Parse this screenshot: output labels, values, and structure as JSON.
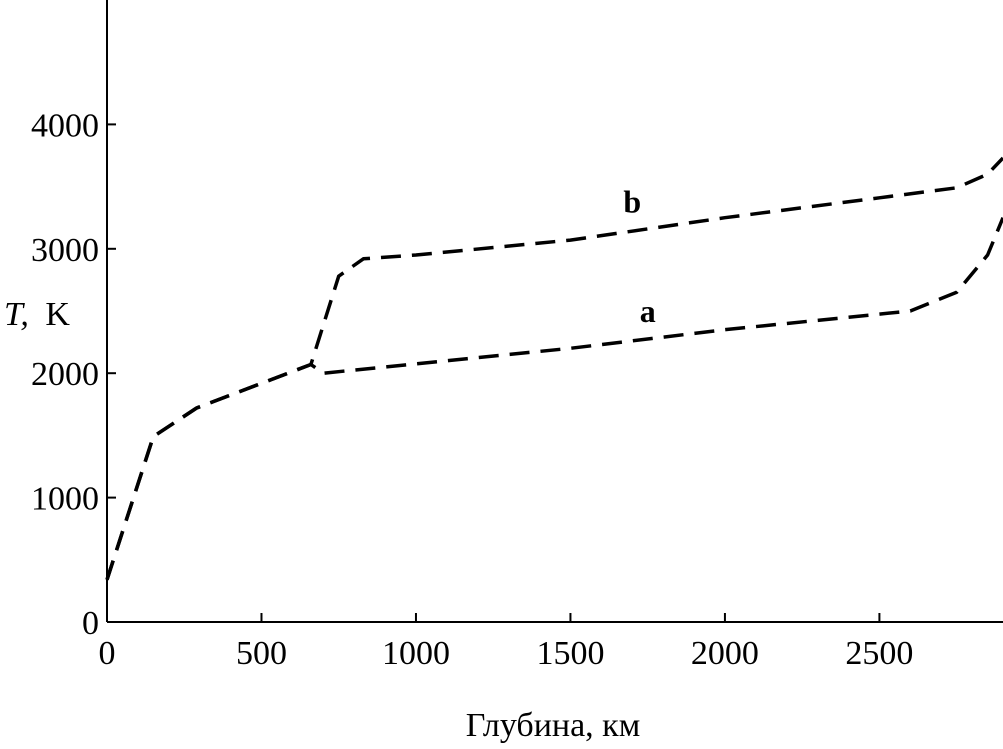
{
  "chart_data": {
    "type": "line",
    "xlabel": "Глубина, км",
    "ylabel_italic": "T,",
    "ylabel_unit": "K",
    "xlim": [
      0,
      2900
    ],
    "ylim": [
      0,
      5000
    ],
    "x_ticks": [
      0,
      500,
      1000,
      1500,
      2000,
      2500
    ],
    "x_tick_labels": [
      "0",
      "500",
      "1000",
      "1500",
      "2000",
      "2500"
    ],
    "y_ticks": [
      0,
      1000,
      2000,
      3000,
      4000
    ],
    "y_tick_labels": [
      "0",
      "1000",
      "2000",
      "3000",
      "4000"
    ],
    "grid": false,
    "line_style": "dashed",
    "series": [
      {
        "name": "a",
        "points": [
          [
            0,
            340
          ],
          [
            150,
            1490
          ],
          [
            290,
            1720
          ],
          [
            660,
            2070
          ],
          [
            700,
            2000
          ],
          [
            1500,
            2200
          ],
          [
            2000,
            2350
          ],
          [
            2600,
            2500
          ],
          [
            2750,
            2650
          ],
          [
            2850,
            2950
          ],
          [
            2900,
            3250
          ]
        ]
      },
      {
        "name": "b",
        "points": [
          [
            0,
            340
          ],
          [
            150,
            1490
          ],
          [
            290,
            1720
          ],
          [
            660,
            2070
          ],
          [
            750,
            2780
          ],
          [
            830,
            2920
          ],
          [
            1000,
            2950
          ],
          [
            1500,
            3070
          ],
          [
            2000,
            3250
          ],
          [
            2500,
            3410
          ],
          [
            2750,
            3490
          ],
          [
            2850,
            3600
          ],
          [
            2900,
            3730
          ]
        ]
      }
    ]
  }
}
